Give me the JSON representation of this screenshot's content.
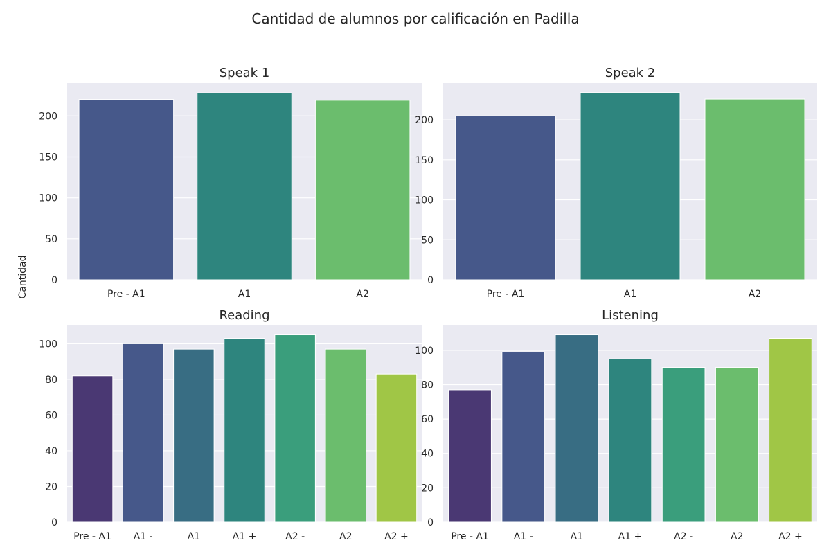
{
  "figure": {
    "title": "Cantidad de alumnos por calificación en Padilla",
    "ylabel": "Cantidad"
  },
  "chart_data": [
    {
      "type": "bar",
      "title": "Speak 1",
      "categories": [
        "Pre - A1",
        "A1",
        "A2"
      ],
      "values": [
        220,
        228,
        219
      ],
      "colors": [
        "#46588a",
        "#2e857e",
        "#6bbd6d"
      ],
      "ylim": [
        0,
        240
      ],
      "yticks": [
        0,
        50,
        100,
        150,
        200
      ],
      "grid": true
    },
    {
      "type": "bar",
      "title": "Speak 2",
      "categories": [
        "Pre - A1",
        "A1",
        "A2"
      ],
      "values": [
        205,
        234,
        226
      ],
      "colors": [
        "#46588a",
        "#2e857e",
        "#6bbd6d"
      ],
      "ylim": [
        0,
        246
      ],
      "yticks": [
        0,
        50,
        100,
        150,
        200
      ],
      "grid": true
    },
    {
      "type": "bar",
      "title": "Reading",
      "categories": [
        "Pre - A1",
        "A1 -",
        "A1",
        "A1 +",
        "A2 -",
        "A2",
        "A2 +"
      ],
      "values": [
        82,
        100,
        97,
        103,
        105,
        97,
        83
      ],
      "colors": [
        "#4a3873",
        "#46588a",
        "#386d83",
        "#2e857e",
        "#3a9e7c",
        "#6bbd6d",
        "#a0c646"
      ],
      "ylim": [
        0,
        110.25
      ],
      "yticks": [
        0,
        20,
        40,
        60,
        80,
        100
      ],
      "grid": true
    },
    {
      "type": "bar",
      "title": "Listening",
      "categories": [
        "Pre - A1",
        "A1 -",
        "A1",
        "A1 +",
        "A2 -",
        "A2",
        "A2 +"
      ],
      "values": [
        77,
        99,
        109,
        95,
        90,
        90,
        107
      ],
      "colors": [
        "#4a3873",
        "#46588a",
        "#386d83",
        "#2e857e",
        "#3a9e7c",
        "#6bbd6d",
        "#a0c646"
      ],
      "ylim": [
        0,
        114.45
      ],
      "yticks": [
        0,
        20,
        40,
        60,
        80,
        100
      ],
      "grid": true
    }
  ]
}
